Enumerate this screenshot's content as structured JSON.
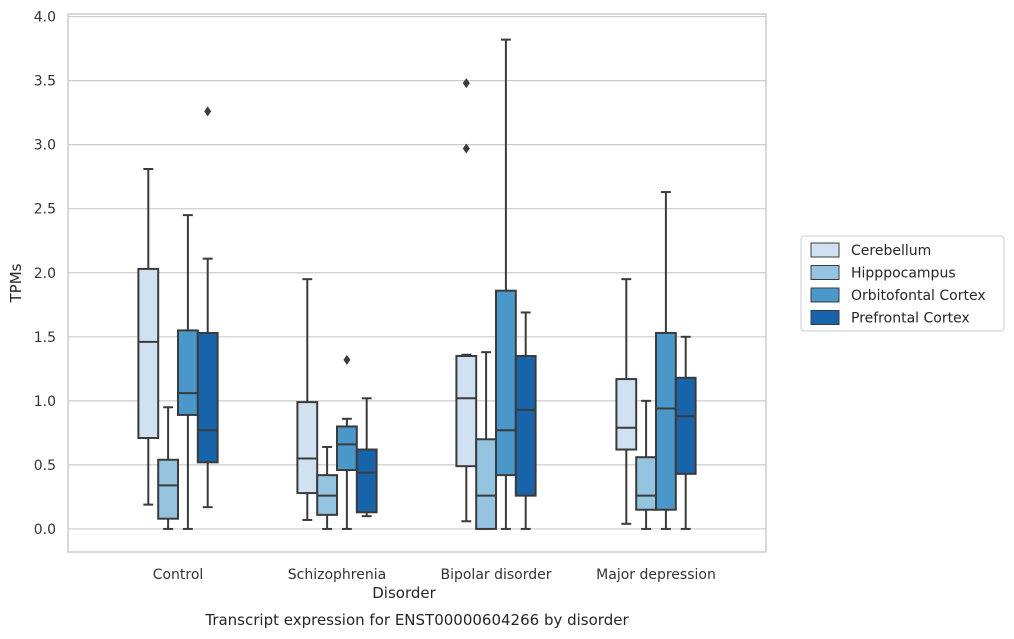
{
  "chart_data": {
    "type": "box",
    "xlabel": "Disorder",
    "ylabel": "TPMs",
    "caption": "Transcript expression for ENST00000604266 by disorder",
    "ylim": [
      -0.18,
      4.02
    ],
    "yticks": [
      0.0,
      0.5,
      1.0,
      1.5,
      2.0,
      2.5,
      3.0,
      3.5,
      4.0
    ],
    "ytick_labels": [
      "0.0",
      "0.5",
      "1.0",
      "1.5",
      "2.0",
      "2.5",
      "3.0",
      "3.5",
      "4.0"
    ],
    "grid": "horizontal",
    "legend_position": "right",
    "categories": [
      "Control",
      "Schizophrenia",
      "Bipolar disorder",
      "Major depression"
    ],
    "series": [
      {
        "name": "Cerebellum",
        "color": "#d0e1f2",
        "boxes": [
          {
            "whislo": 0.19,
            "q1": 0.71,
            "med": 1.46,
            "q3": 2.03,
            "whishi": 2.81,
            "fliers": []
          },
          {
            "whislo": 0.07,
            "q1": 0.28,
            "med": 0.55,
            "q3": 0.99,
            "whishi": 1.95,
            "fliers": []
          },
          {
            "whislo": 0.06,
            "q1": 0.49,
            "med": 1.02,
            "q3": 1.35,
            "whishi": 1.36,
            "fliers": [
              2.97,
              3.48
            ]
          },
          {
            "whislo": 0.04,
            "q1": 0.62,
            "med": 0.79,
            "q3": 1.17,
            "whishi": 1.95,
            "fliers": []
          }
        ]
      },
      {
        "name": "Hipppocampus",
        "color": "#94c4df",
        "boxes": [
          {
            "whislo": 0.0,
            "q1": 0.08,
            "med": 0.34,
            "q3": 0.54,
            "whishi": 0.95,
            "fliers": []
          },
          {
            "whislo": 0.0,
            "q1": 0.11,
            "med": 0.26,
            "q3": 0.42,
            "whishi": 0.64,
            "fliers": []
          },
          {
            "whislo": 0.0,
            "q1": 0.0,
            "med": 0.26,
            "q3": 0.7,
            "whishi": 1.38,
            "fliers": []
          },
          {
            "whislo": 0.0,
            "q1": 0.15,
            "med": 0.26,
            "q3": 0.56,
            "whishi": 1.0,
            "fliers": []
          }
        ]
      },
      {
        "name": "Orbitofontal Cortex",
        "color": "#4a98c9",
        "boxes": [
          {
            "whislo": 0.0,
            "q1": 0.89,
            "med": 1.06,
            "q3": 1.55,
            "whishi": 2.45,
            "fliers": []
          },
          {
            "whislo": 0.0,
            "q1": 0.46,
            "med": 0.66,
            "q3": 0.8,
            "whishi": 0.86,
            "fliers": [
              1.32
            ]
          },
          {
            "whislo": 0.0,
            "q1": 0.42,
            "med": 0.77,
            "q3": 1.86,
            "whishi": 3.82,
            "fliers": []
          },
          {
            "whislo": 0.0,
            "q1": 0.15,
            "med": 0.94,
            "q3": 1.53,
            "whishi": 2.63,
            "fliers": []
          }
        ]
      },
      {
        "name": "Prefrontal Cortex",
        "color": "#1764ab",
        "boxes": [
          {
            "whislo": 0.17,
            "q1": 0.52,
            "med": 0.77,
            "q3": 1.53,
            "whishi": 2.11,
            "fliers": [
              3.26
            ]
          },
          {
            "whislo": 0.1,
            "q1": 0.13,
            "med": 0.44,
            "q3": 0.62,
            "whishi": 1.02,
            "fliers": []
          },
          {
            "whislo": 0.0,
            "q1": 0.26,
            "med": 0.93,
            "q3": 1.35,
            "whishi": 1.69,
            "fliers": []
          },
          {
            "whislo": 0.0,
            "q1": 0.43,
            "med": 0.88,
            "q3": 1.18,
            "whishi": 1.5,
            "fliers": []
          }
        ]
      }
    ]
  }
}
